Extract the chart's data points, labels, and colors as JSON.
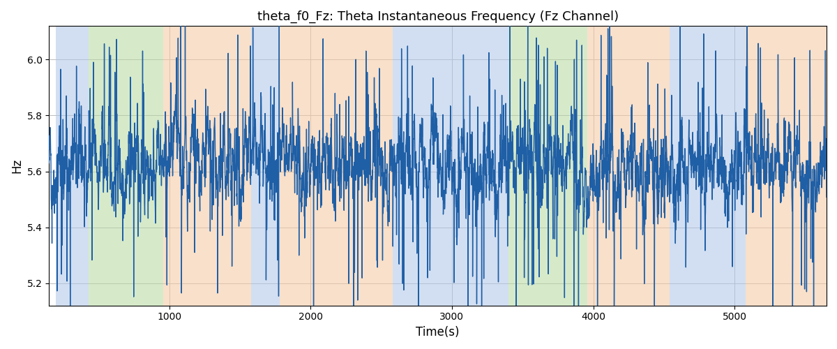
{
  "title": "theta_f0_Fz: Theta Instantaneous Frequency (Fz Channel)",
  "xlabel": "Time(s)",
  "ylabel": "Hz",
  "xlim": [
    150,
    5650
  ],
  "ylim": [
    5.12,
    6.12
  ],
  "yticks": [
    5.2,
    5.4,
    5.6,
    5.8,
    6.0
  ],
  "xticks": [
    1000,
    2000,
    3000,
    4000,
    5000
  ],
  "line_color": "#1f5fa6",
  "line_width": 1.0,
  "signal_seed": 42,
  "n_points": 5500,
  "background_color": "#ffffff",
  "grid_color": "#bbbbbb",
  "colored_bands": [
    {
      "xmin": 200,
      "xmax": 430,
      "color": "#aec6e8",
      "alpha": 0.55
    },
    {
      "xmin": 430,
      "xmax": 960,
      "color": "#b5d9a0",
      "alpha": 0.55
    },
    {
      "xmin": 960,
      "xmax": 1580,
      "color": "#f5c8a0",
      "alpha": 0.55
    },
    {
      "xmin": 1580,
      "xmax": 1780,
      "color": "#aec6e8",
      "alpha": 0.55
    },
    {
      "xmin": 1780,
      "xmax": 2580,
      "color": "#f5c8a0",
      "alpha": 0.55
    },
    {
      "xmin": 2580,
      "xmax": 3400,
      "color": "#aec6e8",
      "alpha": 0.55
    },
    {
      "xmin": 3400,
      "xmax": 3960,
      "color": "#b5d9a0",
      "alpha": 0.55
    },
    {
      "xmin": 3960,
      "xmax": 4540,
      "color": "#f5c8a0",
      "alpha": 0.55
    },
    {
      "xmin": 4540,
      "xmax": 5080,
      "color": "#aec6e8",
      "alpha": 0.55
    },
    {
      "xmin": 5080,
      "xmax": 5650,
      "color": "#f5c8a0",
      "alpha": 0.55
    }
  ],
  "figsize": [
    12,
    5
  ],
  "dpi": 100
}
